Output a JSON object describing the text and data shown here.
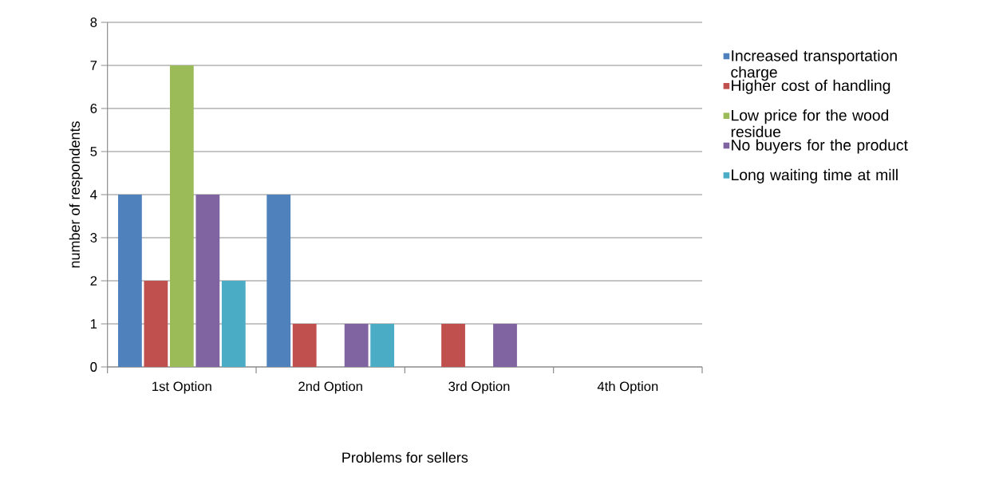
{
  "chart_data": {
    "type": "bar",
    "xlabel": "Problems for sellers",
    "ylabel": "number of respondents",
    "categories": [
      "1st Option",
      "2nd Option",
      "3rd Option",
      "4th Option"
    ],
    "series": [
      {
        "name": "Increased transportation charge",
        "color": "#4f81bd",
        "values": [
          4,
          4,
          0,
          0
        ]
      },
      {
        "name": "Higher cost of handling",
        "color": "#c0504d",
        "values": [
          2,
          1,
          1,
          0
        ]
      },
      {
        "name": "Low price for the wood residue",
        "color": "#9bbb59",
        "values": [
          7,
          0,
          0,
          0
        ]
      },
      {
        "name": "No  buyers for the product",
        "color": "#8064a2",
        "values": [
          4,
          1,
          1,
          0
        ]
      },
      {
        "name": "Long waiting time at mill",
        "color": "#4bacc6",
        "values": [
          2,
          1,
          0,
          0
        ]
      }
    ],
    "ylim": [
      0,
      8
    ],
    "yticks": [
      0,
      1,
      2,
      3,
      4,
      5,
      6,
      7,
      8
    ],
    "grid": "y",
    "legend": "right"
  }
}
